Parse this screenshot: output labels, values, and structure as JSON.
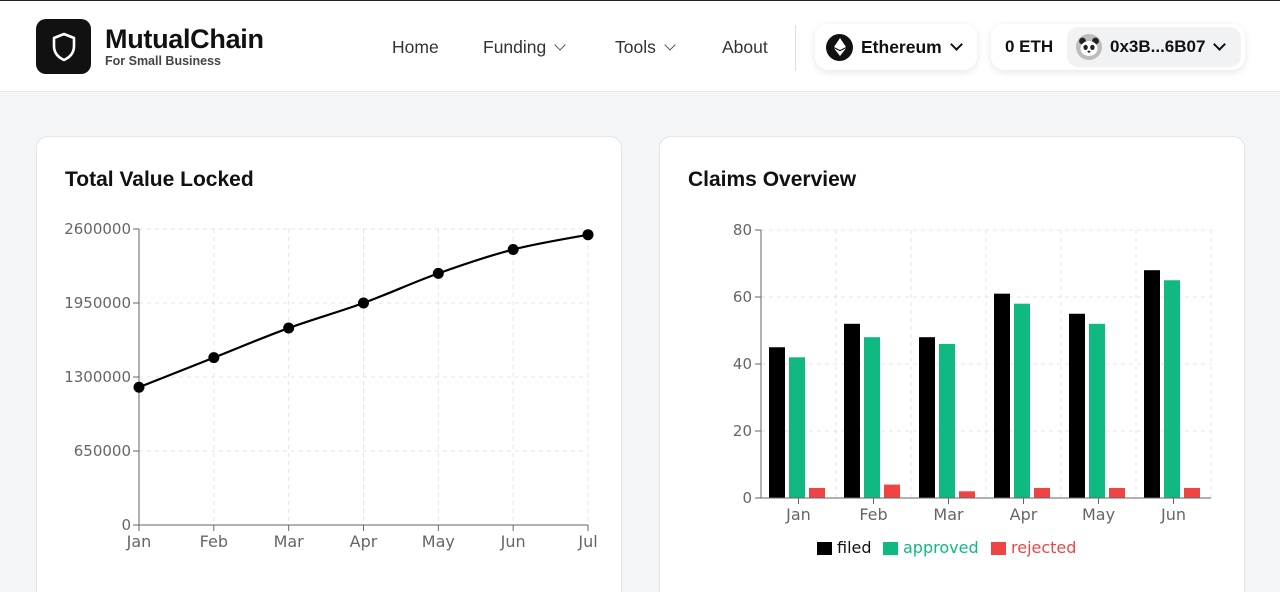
{
  "brand": {
    "name": "MutualChain",
    "tagline": "For Small Business",
    "logo_icon": "shield-icon"
  },
  "nav": [
    {
      "label": "Home",
      "has_dropdown": false
    },
    {
      "label": "Funding",
      "has_dropdown": true
    },
    {
      "label": "Tools",
      "has_dropdown": true
    },
    {
      "label": "About",
      "has_dropdown": false
    }
  ],
  "network": {
    "label": "Ethereum",
    "icon": "ethereum-icon"
  },
  "account": {
    "balance": "0 ETH",
    "address": "0x3B...6B07",
    "avatar_icon": "panda-avatar-icon"
  },
  "tvl_card": {
    "title": "Total Value Locked"
  },
  "claims_card": {
    "title": "Claims Overview"
  },
  "chart_data": [
    {
      "type": "line",
      "x": [
        "Jan",
        "Feb",
        "Mar",
        "Apr",
        "May",
        "Jun",
        "Jul"
      ],
      "series": [
        {
          "values": [
            1210000,
            1470000,
            1730000,
            1950000,
            2210000,
            2420000,
            2550000
          ],
          "color": "#000000"
        }
      ],
      "yticks": [
        "0",
        "650000",
        "1300000",
        "1950000",
        "2600000"
      ],
      "ylim": [
        0,
        2600000
      ],
      "grid": true
    },
    {
      "type": "bar",
      "categories": [
        "Jan",
        "Feb",
        "Mar",
        "Apr",
        "May",
        "Jun"
      ],
      "series": [
        {
          "name": "filed",
          "values": [
            45,
            52,
            48,
            61,
            55,
            68
          ],
          "color": "#000000"
        },
        {
          "name": "approved",
          "values": [
            42,
            48,
            46,
            58,
            52,
            65
          ],
          "color": "#10b981"
        },
        {
          "name": "rejected",
          "values": [
            3,
            4,
            2,
            3,
            3,
            3
          ],
          "color": "#ef4444"
        }
      ],
      "yticks": [
        "0",
        "20",
        "40",
        "60",
        "80"
      ],
      "ylim": [
        0,
        80
      ],
      "grid": true,
      "legend": "bottom"
    }
  ]
}
